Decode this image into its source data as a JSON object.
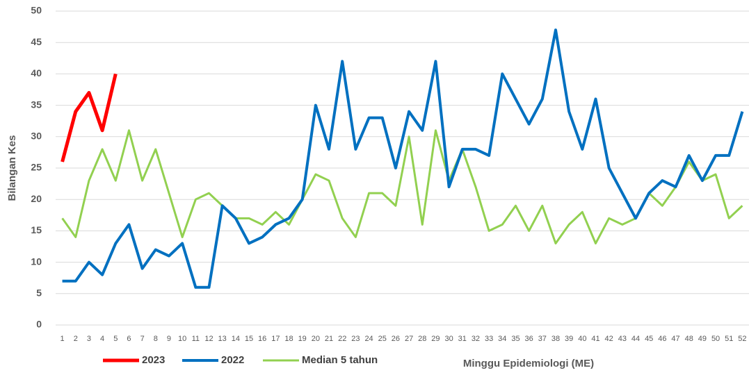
{
  "chart_data": {
    "type": "line",
    "y_label": "Bilangan Kes",
    "x_label": "Minggu Epidemiologi (ME)",
    "categories": [
      "1",
      "2",
      "3",
      "4",
      "5",
      "6",
      "7",
      "8",
      "9",
      "10",
      "11",
      "12",
      "13",
      "14",
      "15",
      "16",
      "17",
      "18",
      "19",
      "20",
      "21",
      "22",
      "23",
      "24",
      "25",
      "26",
      "27",
      "28",
      "29",
      "30",
      "31",
      "32",
      "33",
      "34",
      "35",
      "36",
      "37",
      "38",
      "39",
      "40",
      "41",
      "42",
      "43",
      "44",
      "45",
      "46",
      "47",
      "48",
      "49",
      "50",
      "51",
      "52"
    ],
    "series": [
      {
        "name": "2023",
        "color": "#ff0000",
        "width": 5,
        "values": [
          26,
          34,
          37,
          31,
          40,
          null,
          null,
          null,
          null,
          null,
          null,
          null,
          null,
          null,
          null,
          null,
          null,
          null,
          null,
          null,
          null,
          null,
          null,
          null,
          null,
          null,
          null,
          null,
          null,
          null,
          null,
          null,
          null,
          null,
          null,
          null,
          null,
          null,
          null,
          null,
          null,
          null,
          null,
          null,
          null,
          null,
          null,
          null,
          null,
          null,
          null,
          null
        ]
      },
      {
        "name": "2022",
        "color": "#0070c0",
        "width": 4,
        "values": [
          7,
          7,
          10,
          8,
          13,
          16,
          9,
          12,
          11,
          13,
          6,
          6,
          19,
          17,
          13,
          14,
          16,
          17,
          20,
          35,
          28,
          42,
          28,
          33,
          33,
          25,
          34,
          31,
          42,
          22,
          28,
          28,
          27,
          40,
          36,
          32,
          36,
          47,
          34,
          28,
          36,
          25,
          21,
          17,
          21,
          23,
          22,
          27,
          23,
          27,
          27,
          34
        ]
      },
      {
        "name": "Median 5 tahun",
        "color": "#92d050",
        "width": 3,
        "values": [
          17,
          14,
          23,
          28,
          23,
          31,
          23,
          28,
          21,
          14,
          20,
          21,
          19,
          17,
          17,
          16,
          18,
          16,
          20,
          24,
          23,
          17,
          14,
          21,
          21,
          19,
          30,
          16,
          31,
          23,
          28,
          22,
          15,
          16,
          19,
          15,
          19,
          13,
          16,
          18,
          13,
          17,
          16,
          17,
          21,
          19,
          22,
          26,
          23,
          24,
          17,
          19
        ]
      }
    ],
    "ylim": [
      0,
      50
    ],
    "yticks": [
      0,
      5,
      10,
      15,
      20,
      25,
      30,
      35,
      40,
      45,
      50
    ],
    "grid": true
  }
}
